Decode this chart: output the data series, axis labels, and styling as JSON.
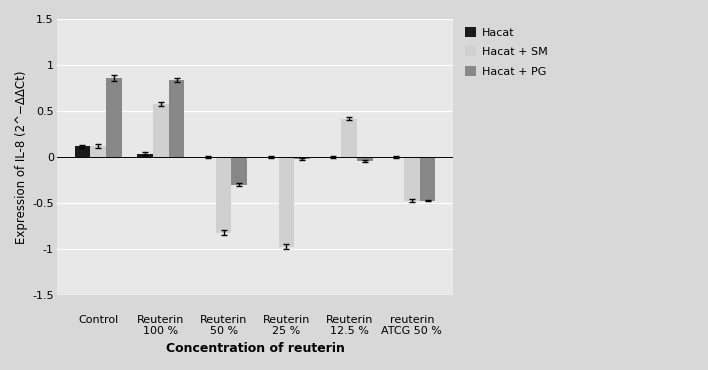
{
  "categories": [
    "Control",
    "Reuterin\n100 %",
    "Reuterin\n50 %",
    "Reuterin\n25 %",
    "Reuterin\n12.5 %",
    "reuterin\nATCG 50 %"
  ],
  "series": {
    "Hacat": [
      0.12,
      0.04,
      0.0,
      0.0,
      0.0,
      0.0
    ],
    "Hacat + SM": [
      0.12,
      0.58,
      -0.82,
      -0.97,
      0.42,
      -0.47
    ],
    "Hacat + PG": [
      0.86,
      0.84,
      -0.3,
      -0.02,
      -0.04,
      -0.47
    ]
  },
  "errors": {
    "Hacat": [
      0.015,
      0.015,
      0.01,
      0.01,
      0.01,
      0.01
    ],
    "Hacat + SM": [
      0.02,
      0.02,
      0.025,
      0.025,
      0.02,
      0.02
    ],
    "Hacat + PG": [
      0.03,
      0.02,
      0.015,
      0.01,
      0.01,
      0.01
    ]
  },
  "colors": {
    "Hacat": "#1a1a1a",
    "Hacat + SM": "#d0d0d0",
    "Hacat + PG": "#888888"
  },
  "ylabel": "Expression of IL-8 (2^−ΔΔCt)",
  "xlabel": "Concentration of reuterin",
  "ylim": [
    -1.5,
    1.5
  ],
  "yticks": [
    -1.5,
    -1.0,
    -0.5,
    0,
    0.5,
    1.0,
    1.5
  ],
  "background_color": "#d8d8d8",
  "plot_bg_color": "#e8e8e8"
}
